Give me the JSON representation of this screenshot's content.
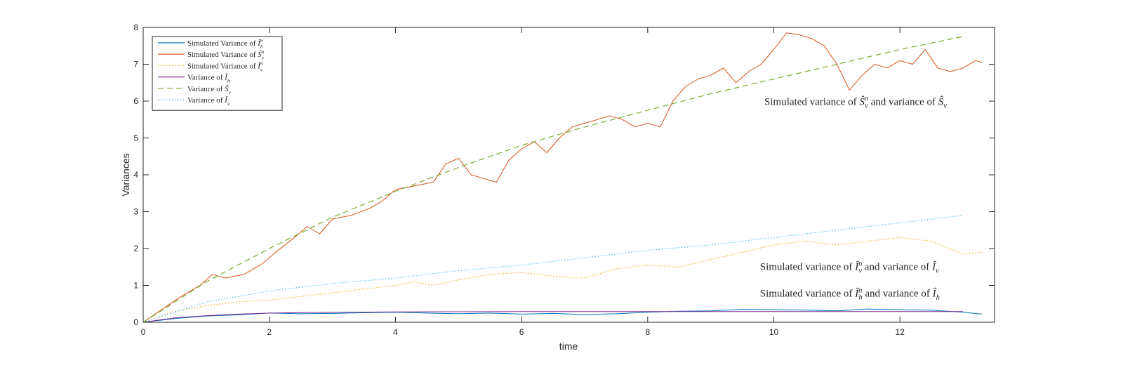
{
  "chart_data": {
    "type": "line",
    "xlabel": "time",
    "ylabel": "Variances",
    "xlim": [
      0,
      13.5
    ],
    "ylim": [
      0,
      8
    ],
    "xticks": [
      0,
      2,
      4,
      6,
      8,
      10,
      12
    ],
    "yticks": [
      0,
      1,
      2,
      3,
      4,
      5,
      6,
      7,
      8
    ],
    "grid": false,
    "legend_position": "top-left",
    "series": [
      {
        "name": "Simulated Variance of Î_h^n",
        "color": "#0072BD",
        "style": "solid",
        "x": [
          0,
          0.5,
          1,
          1.5,
          2,
          2.5,
          3,
          3.5,
          4,
          4.5,
          5,
          5.5,
          6,
          6.5,
          7,
          7.5,
          8,
          8.5,
          9,
          9.5,
          10,
          10.5,
          11,
          11.5,
          12,
          12.5,
          13,
          13.3
        ],
        "y": [
          0,
          0.1,
          0.17,
          0.2,
          0.25,
          0.23,
          0.24,
          0.26,
          0.27,
          0.25,
          0.23,
          0.25,
          0.22,
          0.24,
          0.21,
          0.23,
          0.27,
          0.3,
          0.31,
          0.35,
          0.34,
          0.33,
          0.31,
          0.36,
          0.34,
          0.33,
          0.27,
          0.22
        ]
      },
      {
        "name": "Simulated Variance of Ŝ_v^n",
        "color": "#D95319",
        "style": "solid",
        "x": [
          0,
          0.3,
          0.6,
          0.9,
          1.1,
          1.3,
          1.6,
          1.9,
          2.1,
          2.4,
          2.6,
          2.8,
          3.0,
          3.3,
          3.6,
          3.8,
          4.0,
          4.3,
          4.6,
          4.8,
          5.0,
          5.2,
          5.4,
          5.6,
          5.8,
          6.0,
          6.2,
          6.4,
          6.6,
          6.8,
          7.0,
          7.2,
          7.4,
          7.6,
          7.8,
          8.0,
          8.2,
          8.4,
          8.6,
          8.8,
          9.0,
          9.2,
          9.4,
          9.6,
          9.8,
          10.0,
          10.2,
          10.4,
          10.6,
          10.8,
          11.0,
          11.2,
          11.4,
          11.6,
          11.8,
          12.0,
          12.2,
          12.4,
          12.6,
          12.8,
          13.0,
          13.2,
          13.3
        ],
        "y": [
          0,
          0.35,
          0.7,
          1.0,
          1.3,
          1.2,
          1.3,
          1.6,
          1.9,
          2.3,
          2.6,
          2.4,
          2.8,
          2.9,
          3.1,
          3.3,
          3.6,
          3.7,
          3.8,
          4.3,
          4.45,
          4.0,
          3.9,
          3.8,
          4.4,
          4.7,
          4.9,
          4.6,
          5.0,
          5.3,
          5.4,
          5.5,
          5.6,
          5.5,
          5.3,
          5.4,
          5.3,
          6.0,
          6.4,
          6.6,
          6.7,
          6.9,
          6.5,
          6.8,
          7.0,
          7.4,
          7.85,
          7.8,
          7.7,
          7.5,
          7.0,
          6.3,
          6.7,
          7.0,
          6.9,
          7.1,
          7.0,
          7.4,
          6.9,
          6.8,
          6.9,
          7.1,
          7.05
        ]
      },
      {
        "name": "Simulated Variance of Î_v^n",
        "color": "#EDB120",
        "style": "dotted",
        "x": [
          0,
          0.5,
          1,
          1.5,
          2,
          2.5,
          3,
          3.5,
          4,
          4.3,
          4.6,
          5,
          5.5,
          6,
          6.5,
          7,
          7.5,
          8,
          8.5,
          9,
          9.5,
          10,
          10.5,
          11,
          11.5,
          12,
          12.5,
          13,
          13.3
        ],
        "y": [
          0,
          0.3,
          0.45,
          0.55,
          0.6,
          0.7,
          0.8,
          0.9,
          1.0,
          1.1,
          1.0,
          1.15,
          1.3,
          1.35,
          1.25,
          1.2,
          1.45,
          1.55,
          1.5,
          1.7,
          1.9,
          2.1,
          2.2,
          2.1,
          2.2,
          2.3,
          2.2,
          1.85,
          1.9
        ]
      },
      {
        "name": "Variance of Î_h",
        "color": "#7E2F8E",
        "style": "solid",
        "x": [
          0,
          0.5,
          1,
          1.5,
          2,
          3,
          4,
          5,
          6,
          7,
          8,
          9,
          10,
          11,
          12,
          13
        ],
        "y": [
          0,
          0.12,
          0.18,
          0.22,
          0.25,
          0.27,
          0.28,
          0.285,
          0.29,
          0.29,
          0.29,
          0.29,
          0.29,
          0.29,
          0.29,
          0.29
        ]
      },
      {
        "name": "Variance of Ŝ_v",
        "color": "#77AC30",
        "style": "dashed",
        "x": [
          0,
          1,
          2,
          3,
          4,
          5,
          6,
          7,
          8,
          9,
          10,
          11,
          12,
          13
        ],
        "y": [
          0,
          1.1,
          2.0,
          2.85,
          3.55,
          4.2,
          4.8,
          5.3,
          5.75,
          6.2,
          6.6,
          7.0,
          7.4,
          7.75
        ]
      },
      {
        "name": "Variance of Î_v",
        "color": "#4DBEEE",
        "style": "dotted",
        "x": [
          0,
          1,
          2,
          3,
          4,
          5,
          6,
          7,
          8,
          9,
          10,
          11,
          12,
          13
        ],
        "y": [
          0,
          0.55,
          0.85,
          1.05,
          1.2,
          1.4,
          1.55,
          1.75,
          1.95,
          2.1,
          2.3,
          2.5,
          2.7,
          2.9
        ]
      }
    ],
    "annotations": [
      {
        "text": "Simulated variance of Ŝ_v^n and variance of Ŝ_v",
        "x": 9.85,
        "y": 5.9
      },
      {
        "text": "Simulated variance of Î_v^n and variance of Î_v",
        "x": 9.78,
        "y": 1.42
      },
      {
        "text": "Simulated variance of Î_h^n and variance of Î_h",
        "x": 9.78,
        "y": 0.7
      }
    ]
  }
}
